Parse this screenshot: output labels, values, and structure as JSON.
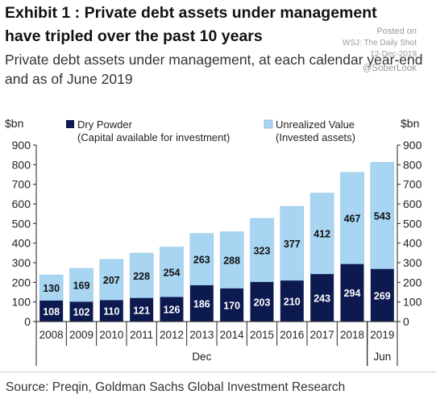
{
  "header": {
    "title": "Exhibit 1 : Private debt assets under management have tripled over the past 10 years",
    "subtitle": "Private debt assets under management, at each calendar year-end and as of June 2019"
  },
  "watermark": {
    "line1": "Posted on",
    "line2": "WSJ: The Daily Shot",
    "line3": "12-Dec-2019",
    "line4": "@SoberLook"
  },
  "footer": {
    "source": "Source: Preqin, Goldman Sachs Global Investment Research"
  },
  "chart_data": {
    "type": "bar",
    "stacked": true,
    "categories": [
      "2008",
      "2009",
      "2010",
      "2011",
      "2012",
      "2013",
      "2014",
      "2015",
      "2016",
      "2017",
      "2018",
      "2019"
    ],
    "series": [
      {
        "name": "Dry Powder",
        "name_sub": "(Capital available for investment)",
        "values": [
          108,
          102,
          110,
          121,
          126,
          186,
          170,
          203,
          210,
          243,
          294,
          269
        ],
        "color": "#0d1a4f"
      },
      {
        "name": "Unrealized Value",
        "name_sub": "(Invested assets)",
        "values": [
          130,
          169,
          207,
          228,
          254,
          263,
          288,
          323,
          377,
          412,
          467,
          543
        ],
        "color": "#a8d5f2"
      }
    ],
    "ylabel_left": "$bn",
    "ylabel_right": "$bn",
    "ylim": [
      0,
      900
    ],
    "yticks": [
      0,
      100,
      200,
      300,
      400,
      500,
      600,
      700,
      800,
      900
    ],
    "x_group_labels": [
      {
        "label": "Dec",
        "from": "2008",
        "to": "2018"
      },
      {
        "label": "Jun",
        "from": "2019",
        "to": "2019"
      }
    ],
    "legend_position": "top",
    "grid": false
  }
}
